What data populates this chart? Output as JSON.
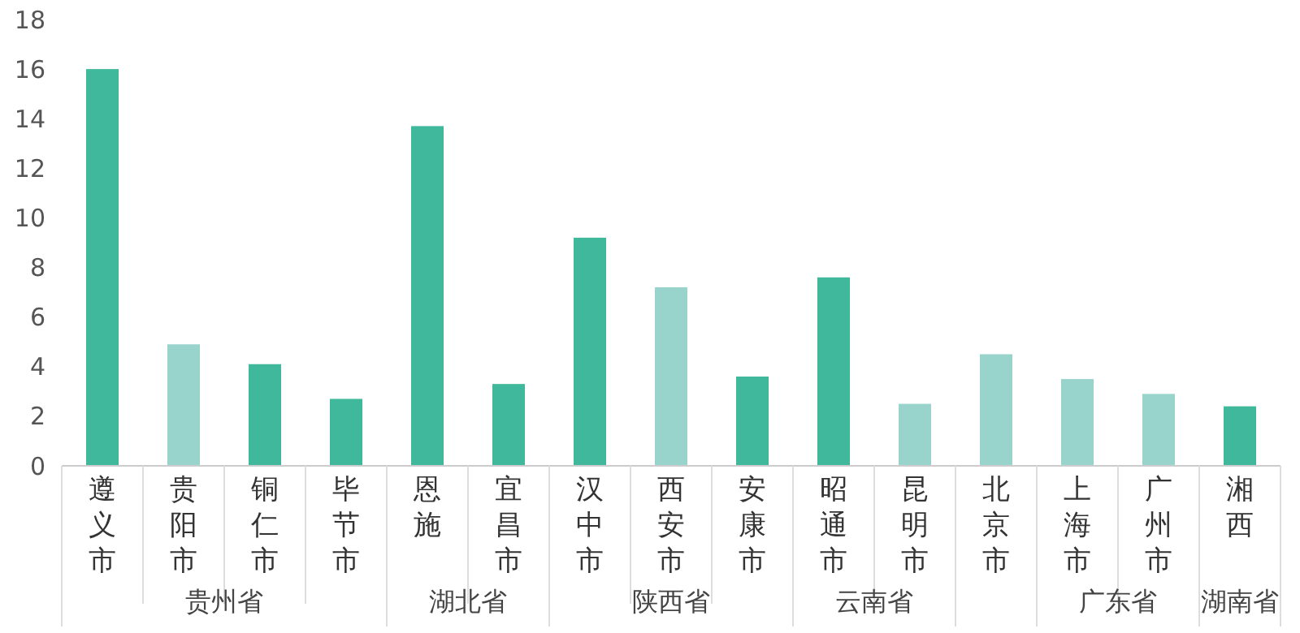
{
  "chart_data": {
    "type": "bar",
    "categories": [
      "遵义市",
      "贵阳市",
      "铜仁市",
      "毕节市",
      "恩施",
      "宜昌市",
      "汉中市",
      "西安市",
      "安康市",
      "昭通市",
      "昆明市",
      "北京市",
      "上海市",
      "广州市",
      "湘西"
    ],
    "values": [
      16.0,
      4.9,
      4.1,
      2.7,
      13.7,
      3.3,
      9.2,
      7.2,
      3.6,
      7.6,
      2.5,
      4.5,
      3.5,
      2.9,
      2.4
    ],
    "colors": [
      "#3fb89b",
      "#99d4cc",
      "#3fb89b",
      "#3fb89b",
      "#3fb89b",
      "#3fb89b",
      "#3fb89b",
      "#99d4cc",
      "#3fb89b",
      "#3fb89b",
      "#99d4cc",
      "#99d4cc",
      "#99d4cc",
      "#99d4cc",
      "#3fb89b"
    ],
    "ylim": [
      0,
      18
    ],
    "yticks": [
      0,
      2,
      4,
      6,
      8,
      10,
      12,
      14,
      16,
      18
    ],
    "grid": false,
    "annotations": [
      "贵州省",
      "湖北省",
      "陕西省",
      "云南省",
      "广东省",
      "湖南省"
    ]
  }
}
